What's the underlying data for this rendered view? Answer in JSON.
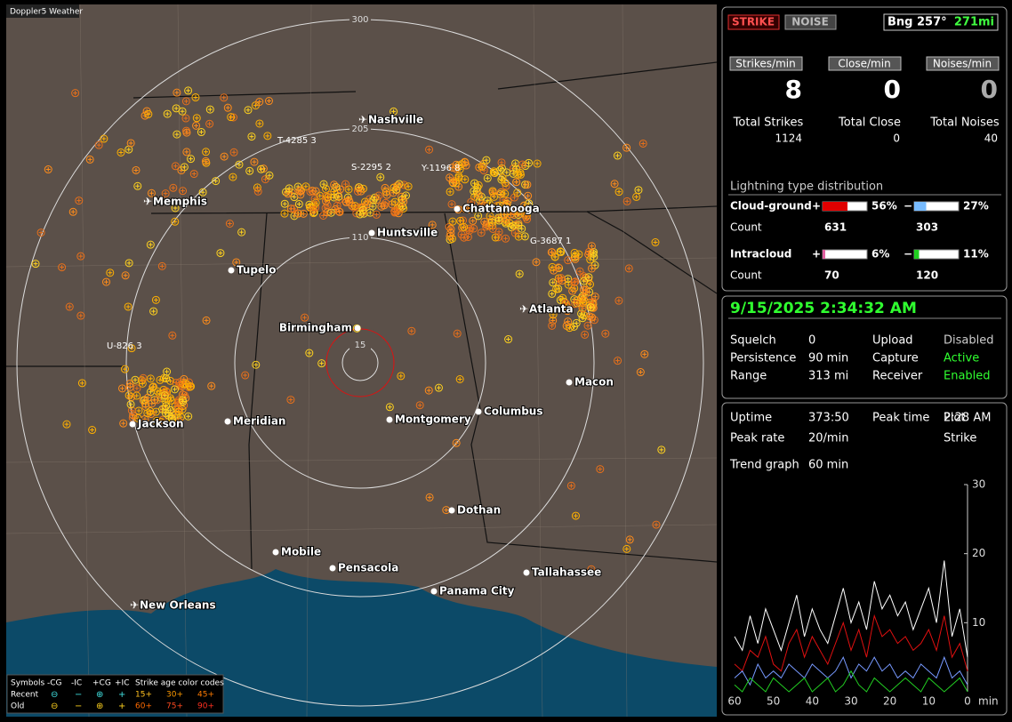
{
  "map": {
    "title": "Doppler5 Weather",
    "rings": [
      "300",
      "205",
      "110",
      "15"
    ],
    "cities": [
      "Nashville",
      "Memphis",
      "Chattanooga",
      "Huntsville",
      "Tupelo",
      "Birmingham",
      "Atlanta",
      "Macon",
      "Jackson",
      "Meridian",
      "Montgomery",
      "Columbus",
      "Dothan",
      "Mobile",
      "Pensacola",
      "Tallahassee",
      "Panama City",
      "New Orleans"
    ],
    "storms": [
      "T-4285 3",
      "S-2295 2",
      "Y-1196 8",
      "U-826 3",
      "G-3687 1"
    ],
    "legend": {
      "symbols": "Symbols",
      "types": [
        "-CG",
        "-IC",
        "+CG",
        "+IC"
      ],
      "age_title": "Strike age color codes",
      "rows": [
        "Recent",
        "Old"
      ],
      "ages": [
        "15+",
        "30+",
        "45+",
        "60+",
        "75+",
        "90+"
      ]
    }
  },
  "panel": {
    "modes": [
      "STRIKE",
      "NOISE"
    ],
    "bearing": "Bng 257°",
    "distance": "271mi",
    "rates": [
      {
        "label": "Strikes/min",
        "value": 8
      },
      {
        "label": "Close/min",
        "value": 0
      },
      {
        "label": "Noises/min",
        "value": 0
      }
    ],
    "totals": [
      {
        "label": "Total Strikes",
        "value": 1124
      },
      {
        "label": "Total Close",
        "value": 0
      },
      {
        "label": "Total Noises",
        "value": 40
      }
    ],
    "dist_title": "Lightning type distribution",
    "count_label": "Count",
    "types": [
      {
        "name": "Cloud-ground",
        "plus": {
          "sign": "+",
          "percent": 56,
          "percent_label": "56%",
          "count": 631
        },
        "minus": {
          "sign": "−",
          "percent": 27,
          "percent_label": "27%",
          "count": 303
        }
      },
      {
        "name": "Intracloud",
        "plus": {
          "sign": "+",
          "percent": 6,
          "percent_label": "6%",
          "count": 70
        },
        "minus": {
          "sign": "−",
          "percent": 11,
          "percent_label": "11%",
          "count": 120
        }
      }
    ],
    "datetime": "9/15/2025 2:34:32 AM",
    "settings": [
      [
        "Squelch",
        "0",
        "Upload",
        "Disabled"
      ],
      [
        "Persistence",
        "90 min",
        "Capture",
        "Active"
      ],
      [
        "Range",
        "313 mi",
        "Receiver",
        "Enabled"
      ]
    ],
    "stats": [
      [
        "Uptime",
        "373:50",
        "Peak time",
        "2:28 AM",
        "Plot"
      ],
      [
        "Peak rate",
        "20/min",
        "",
        "Strike"
      ]
    ],
    "trend_label": "Trend graph",
    "trend_span": "60 min"
  },
  "trend": {
    "x": [
      60,
      58,
      56,
      54,
      52,
      50,
      48,
      46,
      44,
      42,
      40,
      38,
      36,
      34,
      32,
      30,
      28,
      26,
      24,
      22,
      20,
      18,
      16,
      14,
      12,
      10,
      8,
      6,
      4,
      2,
      0
    ],
    "xlim": [
      60,
      0
    ],
    "ylim": [
      0,
      30
    ],
    "yticks": [
      10,
      20,
      30
    ],
    "xticks": [
      60,
      50,
      40,
      30,
      20,
      10,
      0
    ],
    "xunit": "min",
    "series": [
      {
        "color": "#ffffff",
        "values": [
          8,
          6,
          11,
          7,
          12,
          9,
          6,
          10,
          14,
          8,
          12,
          9,
          7,
          11,
          15,
          10,
          13,
          9,
          16,
          12,
          14,
          11,
          13,
          9,
          12,
          15,
          10,
          19,
          8,
          12,
          5
        ]
      },
      {
        "color": "#e01010",
        "values": [
          4,
          3,
          6,
          5,
          8,
          4,
          3,
          7,
          9,
          5,
          8,
          6,
          4,
          7,
          10,
          6,
          9,
          5,
          11,
          8,
          9,
          7,
          8,
          6,
          7,
          9,
          6,
          11,
          5,
          7,
          3
        ]
      },
      {
        "color": "#7799ff",
        "values": [
          2,
          3,
          1,
          4,
          2,
          3,
          2,
          4,
          3,
          2,
          4,
          3,
          2,
          3,
          5,
          2,
          4,
          3,
          5,
          3,
          4,
          2,
          3,
          2,
          4,
          3,
          2,
          5,
          2,
          3,
          1
        ]
      },
      {
        "color": "#22cc22",
        "values": [
          1,
          0,
          2,
          1,
          0,
          2,
          1,
          0,
          1,
          2,
          0,
          1,
          2,
          0,
          1,
          3,
          1,
          0,
          2,
          1,
          0,
          1,
          2,
          1,
          0,
          2,
          1,
          0,
          1,
          2,
          0
        ]
      }
    ]
  }
}
